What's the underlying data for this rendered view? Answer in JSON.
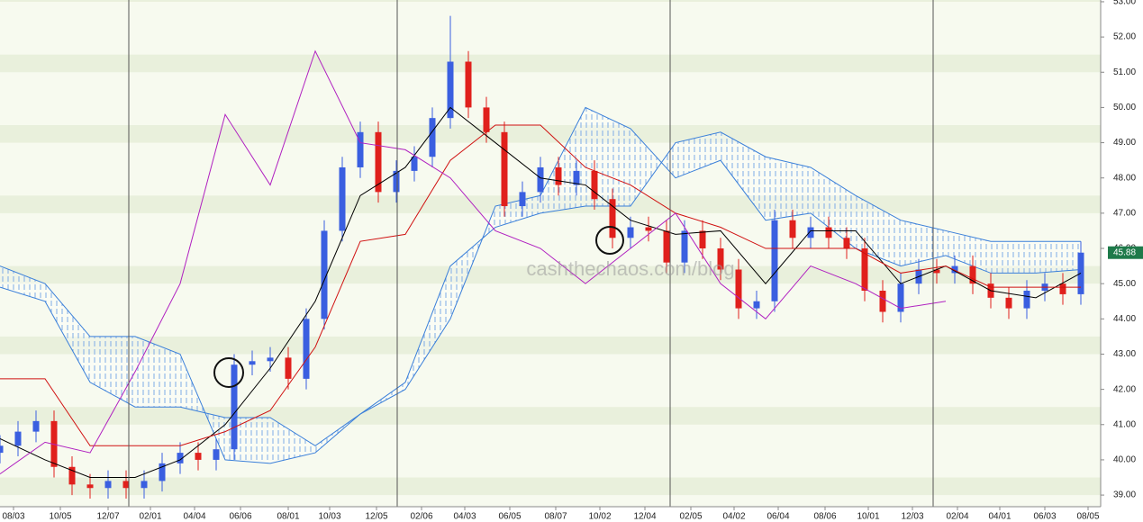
{
  "chart_data": {
    "type": "candlestick",
    "watermark": "cashthechaos.com/blog",
    "xlim": [
      0,
      244.4
    ],
    "ylim": [
      38.67,
      53.05
    ],
    "yticks": [
      {
        "value": 39,
        "label": "39.00"
      },
      {
        "value": 40,
        "label": "40.00"
      },
      {
        "value": 41,
        "label": "41.00"
      },
      {
        "value": 42,
        "label": "42.00"
      },
      {
        "value": 43,
        "label": "43.00"
      },
      {
        "value": 44,
        "label": "44.00"
      },
      {
        "value": 45,
        "label": "45.00"
      },
      {
        "value": 46,
        "label": "46.00"
      },
      {
        "value": 47,
        "label": "47.00"
      },
      {
        "value": 48,
        "label": "48.00"
      },
      {
        "value": 49,
        "label": "49.00"
      },
      {
        "value": 50,
        "label": "50.00"
      },
      {
        "value": 51,
        "label": "51.00"
      },
      {
        "value": 52,
        "label": "52.00"
      },
      {
        "value": 53,
        "label": "53.00"
      }
    ],
    "xticks": [
      {
        "value": 3,
        "label": "08/03"
      },
      {
        "value": 13.4,
        "label": "10/05"
      },
      {
        "value": 24,
        "label": "12/07"
      },
      {
        "value": 33.4,
        "label": "02/01"
      },
      {
        "value": 43.2,
        "label": "04/04"
      },
      {
        "value": 53.4,
        "label": "06/06"
      },
      {
        "value": 64,
        "label": "08/01"
      },
      {
        "value": 73.2,
        "label": "10/03"
      },
      {
        "value": 83.6,
        "label": "12/05"
      },
      {
        "value": 93.6,
        "label": "02/06"
      },
      {
        "value": 103.2,
        "label": "04/03"
      },
      {
        "value": 113.2,
        "label": "06/05"
      },
      {
        "value": 123.4,
        "label": "08/07"
      },
      {
        "value": 133.2,
        "label": "10/02"
      },
      {
        "value": 143.2,
        "label": "12/04"
      },
      {
        "value": 153.4,
        "label": "02/05"
      },
      {
        "value": 163,
        "label": "04/02"
      },
      {
        "value": 172.8,
        "label": "06/04"
      },
      {
        "value": 183.2,
        "label": "08/06"
      },
      {
        "value": 192.8,
        "label": "10/01"
      },
      {
        "value": 202.6,
        "label": "12/03"
      },
      {
        "value": 212.6,
        "label": "02/04"
      },
      {
        "value": 222,
        "label": "04/01"
      },
      {
        "value": 232,
        "label": "06/03"
      },
      {
        "value": 241.6,
        "label": "08/05"
      }
    ],
    "up_color": "#3a5fe0",
    "down_color": "#e0201c",
    "x": [
      0,
      4,
      8,
      12,
      16,
      20,
      24,
      28,
      32,
      36,
      40,
      44,
      48,
      52,
      56,
      60,
      64,
      68,
      72,
      76,
      80,
      84,
      88,
      92,
      96,
      100,
      104,
      108,
      112,
      116,
      120,
      124,
      128,
      132,
      136,
      140,
      144,
      148,
      152,
      156,
      160,
      164,
      168,
      172,
      176,
      180,
      184,
      188,
      192,
      196,
      200,
      204,
      208,
      212,
      216,
      220,
      224,
      228,
      232,
      236,
      240
    ],
    "open": [
      40.2,
      40.4,
      40.8,
      41.1,
      39.8,
      39.3,
      39.2,
      39.4,
      39.2,
      39.4,
      39.9,
      40.2,
      40.0,
      40.3,
      42.7,
      42.8,
      42.9,
      42.3,
      44.0,
      46.5,
      48.3,
      49.3,
      47.6,
      48.2,
      48.6,
      49.7,
      51.3,
      50.0,
      49.3,
      47.2,
      47.6,
      48.3,
      47.8,
      48.2,
      47.4,
      46.3,
      46.6,
      46.5,
      45.6,
      46.5,
      46.0,
      45.4,
      44.3,
      44.5,
      46.8,
      46.3,
      46.6,
      46.3,
      46.0,
      44.8,
      44.2,
      45.0,
      45.4,
      45.3,
      45.5,
      45.0,
      44.6,
      44.3,
      44.8,
      45.0,
      44.7
    ],
    "high": [
      40.7,
      41.1,
      41.4,
      41.4,
      40.1,
      39.6,
      39.7,
      39.7,
      39.7,
      40.2,
      40.5,
      40.5,
      40.6,
      43.0,
      43.1,
      43.2,
      43.2,
      44.3,
      46.8,
      48.6,
      49.6,
      49.6,
      48.5,
      48.9,
      50.0,
      52.6,
      51.6,
      50.3,
      49.6,
      47.9,
      48.6,
      48.6,
      48.5,
      48.5,
      47.7,
      46.9,
      46.9,
      46.8,
      46.8,
      46.8,
      46.3,
      45.7,
      44.8,
      47.1,
      47.1,
      46.9,
      46.9,
      46.6,
      46.3,
      45.1,
      45.3,
      45.7,
      45.7,
      45.8,
      45.8,
      45.3,
      44.9,
      45.1,
      45.3,
      45.3,
      46.2
    ],
    "low": [
      39.9,
      40.1,
      40.5,
      39.5,
      39.0,
      38.9,
      38.9,
      38.9,
      38.9,
      39.1,
      39.6,
      39.7,
      39.7,
      40.0,
      42.4,
      42.5,
      42.0,
      42.0,
      43.7,
      46.2,
      48.0,
      47.3,
      47.3,
      47.9,
      48.3,
      49.4,
      49.7,
      49.0,
      46.9,
      46.9,
      47.3,
      47.5,
      47.5,
      47.1,
      46.0,
      46.0,
      46.2,
      45.3,
      45.3,
      45.7,
      45.1,
      44.0,
      44.0,
      44.2,
      46.0,
      46.0,
      46.0,
      45.7,
      44.5,
      43.9,
      43.9,
      44.7,
      45.0,
      45.0,
      44.7,
      44.3,
      44.0,
      44.0,
      44.5,
      44.4,
      44.4
    ],
    "close": [
      40.4,
      40.8,
      41.1,
      39.8,
      39.3,
      39.2,
      39.4,
      39.2,
      39.4,
      39.9,
      40.2,
      40.0,
      40.3,
      42.7,
      42.8,
      42.9,
      42.3,
      44.0,
      46.5,
      48.3,
      49.3,
      47.6,
      48.2,
      48.6,
      49.7,
      51.3,
      50.0,
      49.3,
      47.2,
      47.6,
      48.3,
      47.8,
      48.2,
      47.4,
      46.3,
      46.6,
      46.5,
      45.6,
      46.5,
      46.0,
      45.4,
      44.3,
      44.5,
      46.8,
      46.3,
      46.6,
      46.3,
      46.0,
      44.8,
      44.2,
      45.0,
      45.4,
      45.3,
      45.5,
      45.0,
      44.6,
      44.3,
      44.8,
      45.0,
      44.7,
      45.88
    ],
    "last_color": "#1e7a4a",
    "line_x": [
      0,
      10,
      20,
      30,
      40,
      50,
      60,
      70,
      80,
      90,
      100,
      110,
      120,
      130,
      140,
      150,
      160,
      170,
      180,
      190,
      200,
      210,
      220,
      230,
      240
    ],
    "cloud_color": "#3a7fd9",
    "senkou_a": [
      44.9,
      44.5,
      42.2,
      41.5,
      41.5,
      41.2,
      41.2,
      40.4,
      41.3,
      42.0,
      44.0,
      47.2,
      47.5,
      50.0,
      49.4,
      48.0,
      48.5,
      46.8,
      47.0,
      46.0,
      45.5,
      45.8,
      45.3,
      45.3,
      45.4
    ],
    "senkou_b": [
      45.5,
      45.0,
      43.5,
      43.5,
      43.0,
      40.0,
      39.9,
      40.2,
      41.3,
      42.2,
      45.5,
      46.6,
      47.0,
      47.2,
      47.2,
      49.0,
      49.3,
      48.6,
      48.3,
      47.5,
      46.8,
      46.5,
      46.2,
      46.2,
      46.2
    ],
    "lines": [
      {
        "color": "#000000",
        "values": [
          40.6,
          40.0,
          39.5,
          39.5,
          40.0,
          41.0,
          42.6,
          44.5,
          47.5,
          48.3,
          50.0,
          49.0,
          48.0,
          47.8,
          46.8,
          46.4,
          46.5,
          45.0,
          46.5,
          46.5,
          45.0,
          45.5,
          44.8,
          44.6,
          45.3
        ]
      },
      {
        "color": "#d01010",
        "values": [
          42.3,
          42.3,
          40.4,
          40.4,
          40.4,
          40.8,
          41.4,
          43.2,
          46.2,
          46.4,
          48.5,
          49.5,
          49.5,
          48.3,
          47.8,
          47.0,
          46.6,
          46.0,
          46.0,
          46.0,
          45.3,
          45.5,
          44.9,
          44.9,
          44.9
        ]
      },
      {
        "color": "#b020c0",
        "values": [
          39.6,
          40.5,
          40.2,
          42.5,
          45.0,
          49.8,
          47.8,
          51.6,
          49.0,
          48.8,
          48.0,
          46.5,
          46.0,
          45.0,
          46.0,
          47.0,
          45.0,
          44.0,
          45.5,
          45.0,
          44.3,
          44.5,
          null,
          null,
          null
        ]
      }
    ]
  }
}
